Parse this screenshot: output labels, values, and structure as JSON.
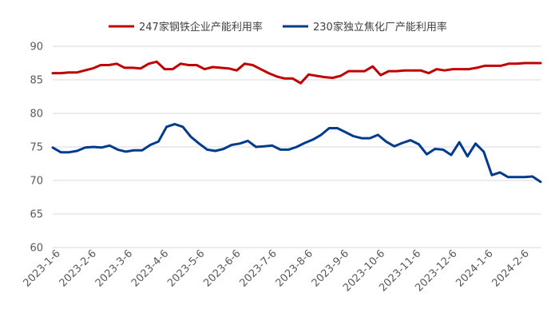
{
  "chart_data": {
    "type": "line",
    "title": "",
    "xlabel": "",
    "ylabel": "",
    "ylim": [
      60,
      90
    ],
    "yticks": [
      60,
      65,
      70,
      75,
      80,
      85,
      90
    ],
    "grid": "horizontal",
    "legend": "top",
    "x_tick_labels": [
      "2023-1-6",
      "2023-2-6",
      "2023-3-6",
      "2023-4-6",
      "2023-5-6",
      "2023-6-6",
      "2023-7-6",
      "2023-8-6",
      "2023-9-6",
      "2023-10-6",
      "2023-11-6",
      "2023-12-6",
      "2024-1-6",
      "2024-2-6"
    ],
    "series": [
      {
        "name": "247家钢铁企业产能利用率",
        "color": "#C00000",
        "values": [
          86.0,
          86.0,
          86.1,
          86.1,
          86.4,
          86.7,
          87.2,
          87.2,
          87.4,
          86.8,
          86.8,
          86.7,
          87.4,
          87.7,
          86.6,
          86.6,
          87.4,
          87.2,
          87.2,
          86.6,
          86.9,
          86.8,
          86.7,
          86.4,
          87.4,
          87.2,
          86.6,
          86.0,
          85.5,
          85.2,
          85.2,
          84.5,
          85.8,
          85.6,
          85.4,
          85.3,
          85.6,
          86.3,
          86.3,
          86.3,
          87.0,
          85.7,
          86.3,
          86.3,
          86.4,
          86.4,
          86.4,
          86.0,
          86.6,
          86.4,
          86.6,
          86.6,
          86.6,
          86.8,
          87.1,
          87.1,
          87.1,
          87.4,
          87.4,
          87.5,
          87.5,
          87.5
        ]
      },
      {
        "name": "230家独立焦化厂产能利用率",
        "color": "#003A8C",
        "values": [
          74.9,
          74.2,
          74.2,
          74.4,
          74.9,
          75.0,
          74.9,
          75.2,
          74.6,
          74.3,
          74.5,
          74.5,
          75.3,
          75.8,
          78.0,
          78.4,
          78.0,
          76.5,
          75.5,
          74.6,
          74.4,
          74.7,
          75.3,
          75.5,
          75.9,
          75.0,
          75.1,
          75.2,
          74.6,
          74.6,
          75.0,
          75.6,
          76.1,
          76.8,
          77.8,
          77.8,
          77.2,
          76.6,
          76.3,
          76.3,
          76.8,
          75.8,
          75.1,
          75.6,
          76.0,
          75.4,
          73.9,
          74.7,
          74.6,
          73.8,
          75.7,
          73.6,
          75.5,
          74.3,
          70.8,
          71.2,
          70.5,
          70.5,
          70.5,
          70.6,
          69.8
        ]
      }
    ]
  }
}
